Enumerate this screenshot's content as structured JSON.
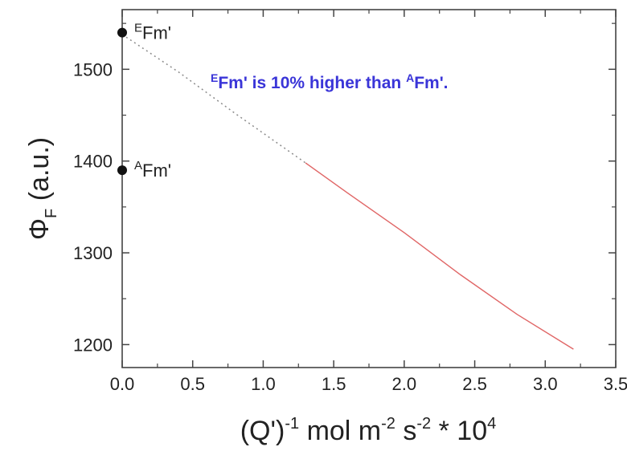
{
  "chart_data": {
    "type": "line",
    "title": "",
    "xlabel": {
      "base": "(Q')",
      "exp1": "-1",
      "mid": " mol m",
      "exp2": "-2",
      "mid2": " s",
      "exp3": "-2",
      "tail": " * 10",
      "exp4": "4"
    },
    "ylabel": {
      "symbol": "Φ",
      "sub": "F",
      "unit": " (a.u.)"
    },
    "xlim": [
      0,
      3.5
    ],
    "ylim": [
      1175,
      1565
    ],
    "x_ticks": [
      "0.0",
      "0.5",
      "1.0",
      "1.5",
      "2.0",
      "2.5",
      "3.0",
      "3.5"
    ],
    "y_ticks": [
      "1200",
      "1300",
      "1400",
      "1500"
    ],
    "x_tick_values": [
      0,
      0.5,
      1.0,
      1.5,
      2.0,
      2.5,
      3.0,
      3.5
    ],
    "y_tick_values": [
      1200,
      1300,
      1400,
      1500
    ],
    "grid": false,
    "series": [
      {
        "role": "measured",
        "color": "#e06666",
        "x": [
          1.3,
          1.6,
          2.0,
          2.4,
          2.8,
          3.2
        ],
        "y": [
          1398,
          1365,
          1322,
          1276,
          1233,
          1195
        ]
      },
      {
        "role": "extrapolation",
        "color": "#8a8a8a",
        "x": [
          0.0,
          0.4,
          0.8,
          1.3
        ],
        "y": [
          1538,
          1497,
          1452,
          1398
        ]
      }
    ],
    "points": [
      {
        "label_sup": "E",
        "label": "Fm'",
        "x": 0.0,
        "y": 1540
      },
      {
        "label_sup": "A",
        "label": "Fm'",
        "x": 0.0,
        "y": 1390
      }
    ],
    "note": {
      "sup1": "E",
      "part1": "Fm' is 10% higher than ",
      "sup2": "A",
      "part2": "Fm'."
    }
  }
}
